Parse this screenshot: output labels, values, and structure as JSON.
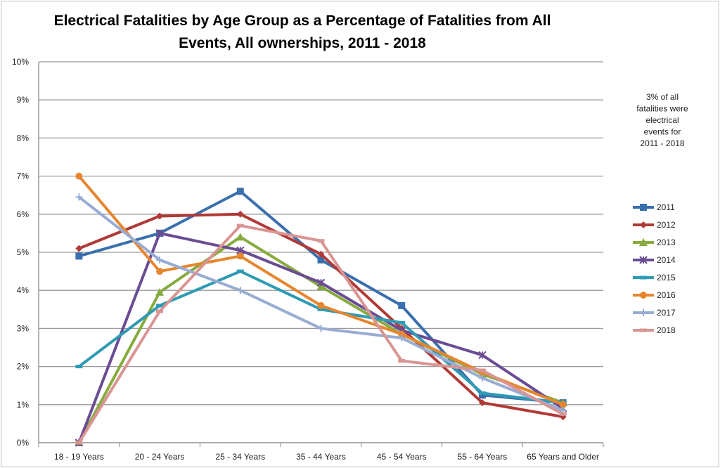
{
  "chart_data": {
    "type": "line",
    "title_lines": [
      "Electrical Fatalities by Age Group as a Percentage of Fatalities from All",
      "Events, All ownerships, 2011 - 2018"
    ],
    "xlabel": "",
    "ylabel": "",
    "categories": [
      "18 - 19 Years",
      "20 - 24 Years",
      "25 - 34 Years",
      "35 - 44 Years",
      "45 - 54 Years",
      "55 - 64 Years",
      "65 Years and Older"
    ],
    "ylim": [
      0,
      10
    ],
    "y_ticks": [
      "0%",
      "1%",
      "2%",
      "3%",
      "4%",
      "5%",
      "6%",
      "7%",
      "8%",
      "9%",
      "10%"
    ],
    "grid": true,
    "legend_position": "right",
    "annotation_lines": [
      "3% of all",
      "fatalities were",
      "electrical",
      "events for",
      "2011 - 2018"
    ],
    "series": [
      {
        "name": "2011",
        "color": "#3a6fae",
        "marker": "square",
        "values": [
          4.9,
          5.5,
          6.6,
          4.8,
          3.6,
          1.25,
          1.05
        ]
      },
      {
        "name": "2012",
        "color": "#b03a36",
        "marker": "diamond",
        "values": [
          5.1,
          5.95,
          6.0,
          4.95,
          3.0,
          1.05,
          0.68
        ]
      },
      {
        "name": "2013",
        "color": "#86ab3e",
        "marker": "triangle",
        "values": [
          0,
          3.95,
          5.4,
          4.1,
          2.85,
          1.8,
          1.05
        ]
      },
      {
        "name": "2014",
        "color": "#6a4c93",
        "marker": "x",
        "values": [
          0,
          5.5,
          5.05,
          4.2,
          2.95,
          2.3,
          0.9
        ]
      },
      {
        "name": "2015",
        "color": "#2f9bb3",
        "marker": "dash",
        "values": [
          2.0,
          3.6,
          4.5,
          3.5,
          3.15,
          1.3,
          1.05
        ]
      },
      {
        "name": "2016",
        "color": "#e6862e",
        "marker": "circle",
        "values": [
          7.0,
          4.5,
          4.9,
          3.6,
          2.85,
          1.85,
          1.0
        ]
      },
      {
        "name": "2017",
        "color": "#98acd4",
        "marker": "plus",
        "values": [
          6.45,
          4.8,
          4.0,
          3.0,
          2.75,
          1.7,
          0.85
        ]
      },
      {
        "name": "2018",
        "color": "#d99593",
        "marker": "dash",
        "values": [
          0,
          3.45,
          5.7,
          5.3,
          2.15,
          1.9,
          0.75
        ]
      }
    ]
  }
}
